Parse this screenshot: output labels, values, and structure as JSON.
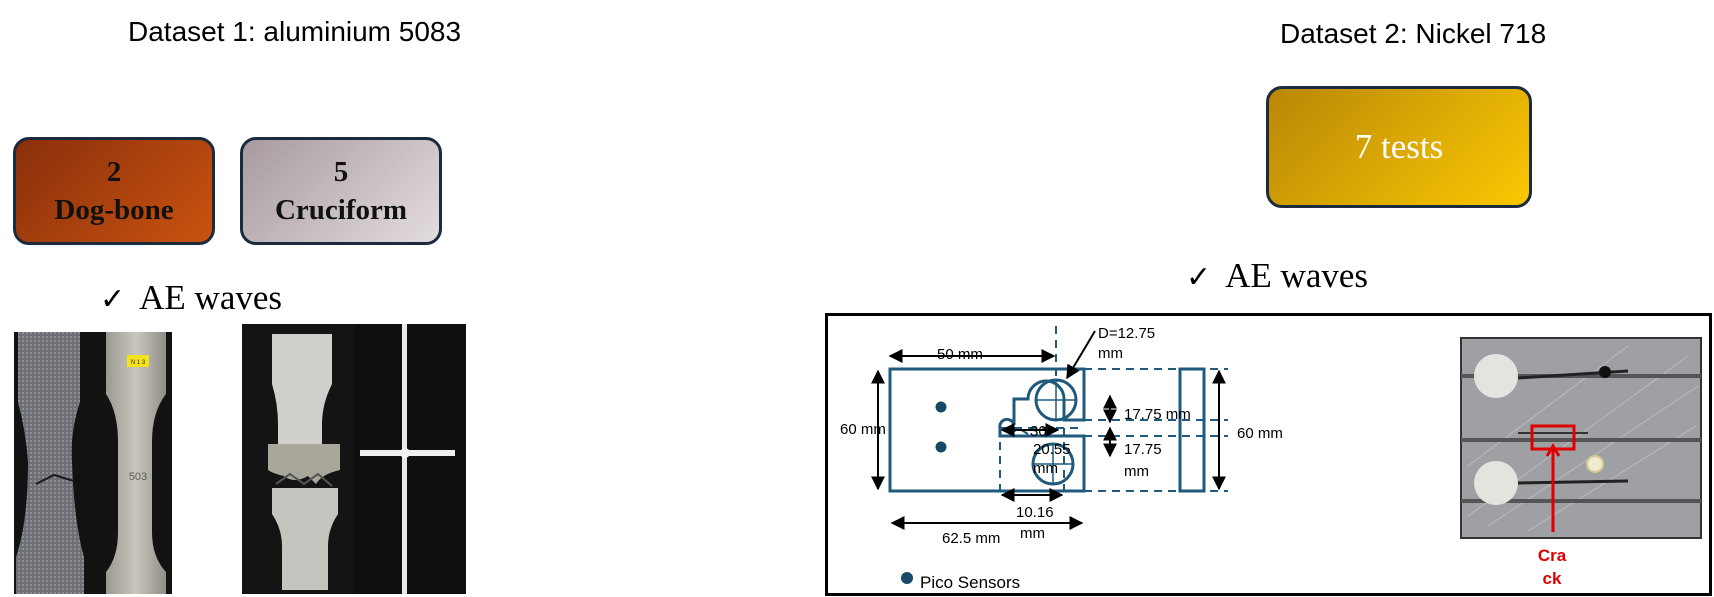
{
  "dataset1": {
    "title": "Dataset 1: aluminium 5083",
    "boxes": [
      {
        "count": "2",
        "label": "Dog-bone",
        "color_from": "#8a2f0c",
        "color_to": "#c9530f"
      },
      {
        "count": "5",
        "label": "Cruciform",
        "color_from": "#a79b9f",
        "color_to": "#e3dcdd"
      }
    ],
    "check_label": "AE waves",
    "photo1": {
      "tag": "N 1 3",
      "marking": "503"
    }
  },
  "dataset2": {
    "title": "Dataset 2: Nickel 718",
    "box": {
      "label": "7 tests",
      "color_from": "#b98706",
      "color_to": "#fbc804"
    },
    "check_label": "AE waves",
    "diagram": {
      "dims": {
        "w50": "50 mm",
        "h60_left": "60 mm",
        "h60_right": "60 mm",
        "d_line1": "D=12.75",
        "d_line2": "mm",
        "h1775_a": "17.75 mm",
        "h1775_b1": "17.75",
        "h1775_b2": "mm",
        "l30": "30",
        "l2055_1": "20.55",
        "l2055_2": "mm",
        "w1016_1": "10.16",
        "w1016_2": "mm",
        "w625": "62.5 mm"
      },
      "legend": "Pico Sensors",
      "crack_line1": "Cra",
      "crack_line2": "ck",
      "crack_color": "#e00000",
      "line_color": "#1f5a7d",
      "sensor_color": "#174a66"
    }
  }
}
